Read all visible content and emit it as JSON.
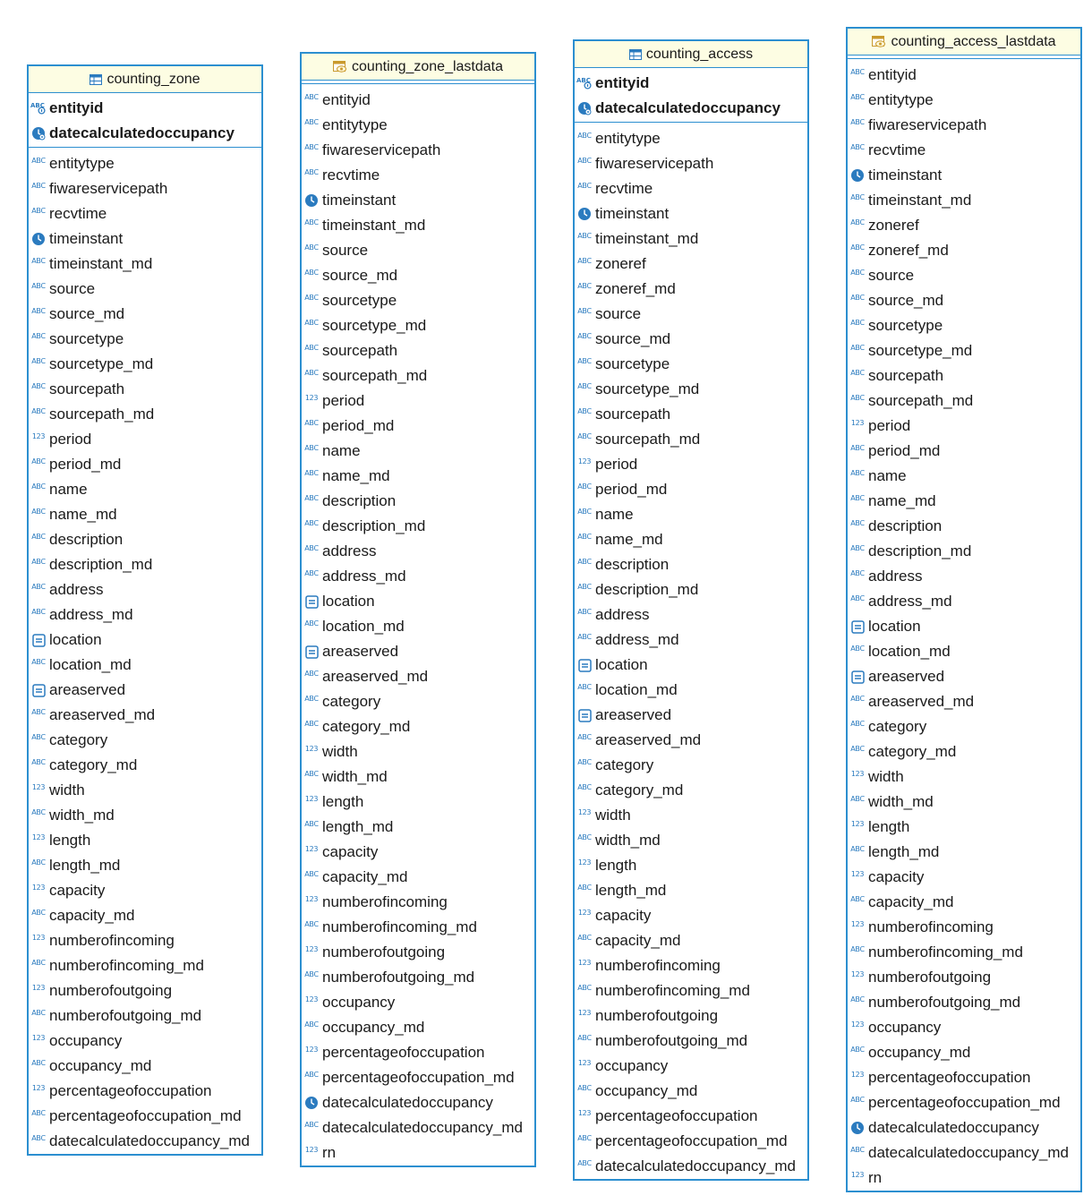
{
  "tables": [
    {
      "id": "counting_zone",
      "header_icon": "table-icon",
      "name": "counting_zone",
      "primary_keys": [
        {
          "name": "entityid",
          "type": "key-string"
        },
        {
          "name": "datecalculatedoccupancy",
          "type": "key-datetime"
        }
      ],
      "attributes": [
        {
          "name": "entitytype",
          "type": "string"
        },
        {
          "name": "fiwareservicepath",
          "type": "string"
        },
        {
          "name": "recvtime",
          "type": "string"
        },
        {
          "name": "timeinstant",
          "type": "datetime"
        },
        {
          "name": "timeinstant_md",
          "type": "string"
        },
        {
          "name": "source",
          "type": "string"
        },
        {
          "name": "source_md",
          "type": "string"
        },
        {
          "name": "sourcetype",
          "type": "string"
        },
        {
          "name": "sourcetype_md",
          "type": "string"
        },
        {
          "name": "sourcepath",
          "type": "string"
        },
        {
          "name": "sourcepath_md",
          "type": "string"
        },
        {
          "name": "period",
          "type": "number"
        },
        {
          "name": "period_md",
          "type": "string"
        },
        {
          "name": "name",
          "type": "string"
        },
        {
          "name": "name_md",
          "type": "string"
        },
        {
          "name": "description",
          "type": "string"
        },
        {
          "name": "description_md",
          "type": "string"
        },
        {
          "name": "address",
          "type": "string"
        },
        {
          "name": "address_md",
          "type": "string"
        },
        {
          "name": "location",
          "type": "geometry"
        },
        {
          "name": "location_md",
          "type": "string"
        },
        {
          "name": "areaserved",
          "type": "geometry"
        },
        {
          "name": "areaserved_md",
          "type": "string"
        },
        {
          "name": "category",
          "type": "string"
        },
        {
          "name": "category_md",
          "type": "string"
        },
        {
          "name": "width",
          "type": "number"
        },
        {
          "name": "width_md",
          "type": "string"
        },
        {
          "name": "length",
          "type": "number"
        },
        {
          "name": "length_md",
          "type": "string"
        },
        {
          "name": "capacity",
          "type": "number"
        },
        {
          "name": "capacity_md",
          "type": "string"
        },
        {
          "name": "numberofincoming",
          "type": "number"
        },
        {
          "name": "numberofincoming_md",
          "type": "string"
        },
        {
          "name": "numberofoutgoing",
          "type": "number"
        },
        {
          "name": "numberofoutgoing_md",
          "type": "string"
        },
        {
          "name": "occupancy",
          "type": "number"
        },
        {
          "name": "occupancy_md",
          "type": "string"
        },
        {
          "name": "percentageofoccupation",
          "type": "number"
        },
        {
          "name": "percentageofoccupation_md",
          "type": "string"
        },
        {
          "name": "datecalculatedoccupancy_md",
          "type": "string"
        }
      ]
    },
    {
      "id": "counting_zone_lastdata",
      "header_icon": "view-icon",
      "name": "counting_zone_lastdata",
      "primary_keys": [],
      "attributes": [
        {
          "name": "entityid",
          "type": "string"
        },
        {
          "name": "entitytype",
          "type": "string"
        },
        {
          "name": "fiwareservicepath",
          "type": "string"
        },
        {
          "name": "recvtime",
          "type": "string"
        },
        {
          "name": "timeinstant",
          "type": "datetime"
        },
        {
          "name": "timeinstant_md",
          "type": "string"
        },
        {
          "name": "source",
          "type": "string"
        },
        {
          "name": "source_md",
          "type": "string"
        },
        {
          "name": "sourcetype",
          "type": "string"
        },
        {
          "name": "sourcetype_md",
          "type": "string"
        },
        {
          "name": "sourcepath",
          "type": "string"
        },
        {
          "name": "sourcepath_md",
          "type": "string"
        },
        {
          "name": "period",
          "type": "number"
        },
        {
          "name": "period_md",
          "type": "string"
        },
        {
          "name": "name",
          "type": "string"
        },
        {
          "name": "name_md",
          "type": "string"
        },
        {
          "name": "description",
          "type": "string"
        },
        {
          "name": "description_md",
          "type": "string"
        },
        {
          "name": "address",
          "type": "string"
        },
        {
          "name": "address_md",
          "type": "string"
        },
        {
          "name": "location",
          "type": "geometry"
        },
        {
          "name": "location_md",
          "type": "string"
        },
        {
          "name": "areaserved",
          "type": "geometry"
        },
        {
          "name": "areaserved_md",
          "type": "string"
        },
        {
          "name": "category",
          "type": "string"
        },
        {
          "name": "category_md",
          "type": "string"
        },
        {
          "name": "width",
          "type": "number"
        },
        {
          "name": "width_md",
          "type": "string"
        },
        {
          "name": "length",
          "type": "number"
        },
        {
          "name": "length_md",
          "type": "string"
        },
        {
          "name": "capacity",
          "type": "number"
        },
        {
          "name": "capacity_md",
          "type": "string"
        },
        {
          "name": "numberofincoming",
          "type": "number"
        },
        {
          "name": "numberofincoming_md",
          "type": "string"
        },
        {
          "name": "numberofoutgoing",
          "type": "number"
        },
        {
          "name": "numberofoutgoing_md",
          "type": "string"
        },
        {
          "name": "occupancy",
          "type": "number"
        },
        {
          "name": "occupancy_md",
          "type": "string"
        },
        {
          "name": "percentageofoccupation",
          "type": "number"
        },
        {
          "name": "percentageofoccupation_md",
          "type": "string"
        },
        {
          "name": "datecalculatedoccupancy",
          "type": "datetime"
        },
        {
          "name": "datecalculatedoccupancy_md",
          "type": "string"
        },
        {
          "name": "rn",
          "type": "number"
        }
      ]
    },
    {
      "id": "counting_access",
      "header_icon": "table-icon",
      "name": "counting_access",
      "primary_keys": [
        {
          "name": "entityid",
          "type": "key-string"
        },
        {
          "name": "datecalculatedoccupancy",
          "type": "key-datetime"
        }
      ],
      "attributes": [
        {
          "name": "entitytype",
          "type": "string"
        },
        {
          "name": "fiwareservicepath",
          "type": "string"
        },
        {
          "name": "recvtime",
          "type": "string"
        },
        {
          "name": "timeinstant",
          "type": "datetime"
        },
        {
          "name": "timeinstant_md",
          "type": "string"
        },
        {
          "name": "zoneref",
          "type": "string"
        },
        {
          "name": "zoneref_md",
          "type": "string"
        },
        {
          "name": "source",
          "type": "string"
        },
        {
          "name": "source_md",
          "type": "string"
        },
        {
          "name": "sourcetype",
          "type": "string"
        },
        {
          "name": "sourcetype_md",
          "type": "string"
        },
        {
          "name": "sourcepath",
          "type": "string"
        },
        {
          "name": "sourcepath_md",
          "type": "string"
        },
        {
          "name": "period",
          "type": "number"
        },
        {
          "name": "period_md",
          "type": "string"
        },
        {
          "name": "name",
          "type": "string"
        },
        {
          "name": "name_md",
          "type": "string"
        },
        {
          "name": "description",
          "type": "string"
        },
        {
          "name": "description_md",
          "type": "string"
        },
        {
          "name": "address",
          "type": "string"
        },
        {
          "name": "address_md",
          "type": "string"
        },
        {
          "name": "location",
          "type": "geometry"
        },
        {
          "name": "location_md",
          "type": "string"
        },
        {
          "name": "areaserved",
          "type": "geometry"
        },
        {
          "name": "areaserved_md",
          "type": "string"
        },
        {
          "name": "category",
          "type": "string"
        },
        {
          "name": "category_md",
          "type": "string"
        },
        {
          "name": "width",
          "type": "number"
        },
        {
          "name": "width_md",
          "type": "string"
        },
        {
          "name": "length",
          "type": "number"
        },
        {
          "name": "length_md",
          "type": "string"
        },
        {
          "name": "capacity",
          "type": "number"
        },
        {
          "name": "capacity_md",
          "type": "string"
        },
        {
          "name": "numberofincoming",
          "type": "number"
        },
        {
          "name": "numberofincoming_md",
          "type": "string"
        },
        {
          "name": "numberofoutgoing",
          "type": "number"
        },
        {
          "name": "numberofoutgoing_md",
          "type": "string"
        },
        {
          "name": "occupancy",
          "type": "number"
        },
        {
          "name": "occupancy_md",
          "type": "string"
        },
        {
          "name": "percentageofoccupation",
          "type": "number"
        },
        {
          "name": "percentageofoccupation_md",
          "type": "string"
        },
        {
          "name": "datecalculatedoccupancy_md",
          "type": "string"
        }
      ]
    },
    {
      "id": "counting_access_lastdata",
      "header_icon": "view-icon",
      "name": "counting_access_lastdata",
      "primary_keys": [],
      "attributes": [
        {
          "name": "entityid",
          "type": "string"
        },
        {
          "name": "entitytype",
          "type": "string"
        },
        {
          "name": "fiwareservicepath",
          "type": "string"
        },
        {
          "name": "recvtime",
          "type": "string"
        },
        {
          "name": "timeinstant",
          "type": "datetime"
        },
        {
          "name": "timeinstant_md",
          "type": "string"
        },
        {
          "name": "zoneref",
          "type": "string"
        },
        {
          "name": "zoneref_md",
          "type": "string"
        },
        {
          "name": "source",
          "type": "string"
        },
        {
          "name": "source_md",
          "type": "string"
        },
        {
          "name": "sourcetype",
          "type": "string"
        },
        {
          "name": "sourcetype_md",
          "type": "string"
        },
        {
          "name": "sourcepath",
          "type": "string"
        },
        {
          "name": "sourcepath_md",
          "type": "string"
        },
        {
          "name": "period",
          "type": "number"
        },
        {
          "name": "period_md",
          "type": "string"
        },
        {
          "name": "name",
          "type": "string"
        },
        {
          "name": "name_md",
          "type": "string"
        },
        {
          "name": "description",
          "type": "string"
        },
        {
          "name": "description_md",
          "type": "string"
        },
        {
          "name": "address",
          "type": "string"
        },
        {
          "name": "address_md",
          "type": "string"
        },
        {
          "name": "location",
          "type": "geometry"
        },
        {
          "name": "location_md",
          "type": "string"
        },
        {
          "name": "areaserved",
          "type": "geometry"
        },
        {
          "name": "areaserved_md",
          "type": "string"
        },
        {
          "name": "category",
          "type": "string"
        },
        {
          "name": "category_md",
          "type": "string"
        },
        {
          "name": "width",
          "type": "number"
        },
        {
          "name": "width_md",
          "type": "string"
        },
        {
          "name": "length",
          "type": "number"
        },
        {
          "name": "length_md",
          "type": "string"
        },
        {
          "name": "capacity",
          "type": "number"
        },
        {
          "name": "capacity_md",
          "type": "string"
        },
        {
          "name": "numberofincoming",
          "type": "number"
        },
        {
          "name": "numberofincoming_md",
          "type": "string"
        },
        {
          "name": "numberofoutgoing",
          "type": "number"
        },
        {
          "name": "numberofoutgoing_md",
          "type": "string"
        },
        {
          "name": "occupancy",
          "type": "number"
        },
        {
          "name": "occupancy_md",
          "type": "string"
        },
        {
          "name": "percentageofoccupation",
          "type": "number"
        },
        {
          "name": "percentageofoccupation_md",
          "type": "string"
        },
        {
          "name": "datecalculatedoccupancy",
          "type": "datetime"
        },
        {
          "name": "datecalculatedoccupancy_md",
          "type": "string"
        },
        {
          "name": "rn",
          "type": "number"
        }
      ]
    }
  ],
  "type_icons": {
    "string": "abc-icon",
    "number": "123-icon",
    "datetime": "clock-icon",
    "geometry": "geometry-icon",
    "key-string": "key-abc-icon",
    "key-datetime": "key-clock-icon"
  },
  "type_glyphs": {
    "string": "ABC",
    "number": "123"
  },
  "colors": {
    "border": "#2c8fd0",
    "header_bg": "#fdfde3",
    "icon_blue": "#2b7bbf"
  }
}
